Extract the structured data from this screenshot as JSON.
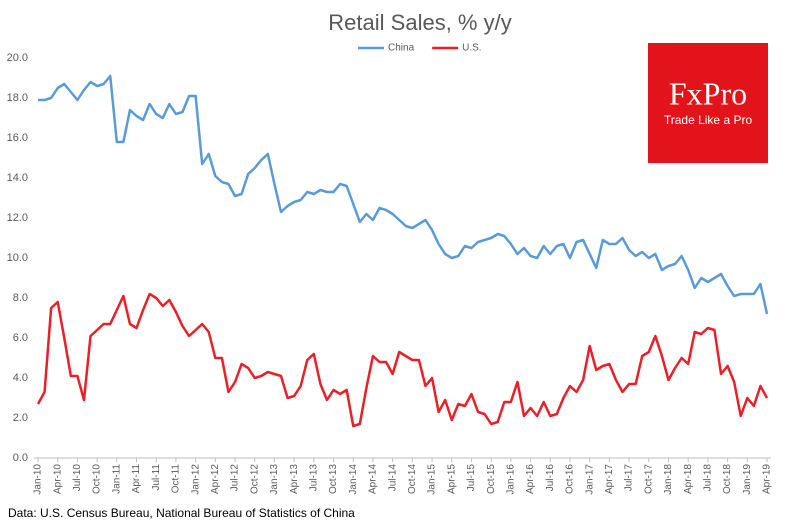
{
  "chart_data": {
    "type": "line",
    "title": "Retail Sales, % y/y",
    "source": "Data: U.S. Census Bureau, National Bureau of Statistics of China",
    "categories": [
      "Jan-10",
      null,
      null,
      "Apr-10",
      null,
      null,
      "Jul-10",
      null,
      null,
      "Oct-10",
      null,
      null,
      "Jan-11",
      null,
      null,
      "Apr-11",
      null,
      null,
      "Jul-11",
      null,
      null,
      "Oct-11",
      null,
      null,
      "Jan-12",
      null,
      null,
      "Apr-12",
      null,
      null,
      "Jul-12",
      null,
      null,
      "Oct-12",
      null,
      null,
      "Jan-13",
      null,
      null,
      "Apr-13",
      null,
      null,
      "Jul-13",
      null,
      null,
      "Oct-13",
      null,
      null,
      "Jan-14",
      null,
      null,
      "Apr-14",
      null,
      null,
      "Jul-14",
      null,
      null,
      "Oct-14",
      null,
      null,
      "Jan-15",
      null,
      null,
      "Apr-15",
      null,
      null,
      "Jul-15",
      null,
      null,
      "Oct-15",
      null,
      null,
      "Jan-16",
      null,
      null,
      "Apr-16",
      null,
      null,
      "Jul-16",
      null,
      null,
      "Oct-16",
      null,
      null,
      "Jan-17",
      null,
      null,
      "Apr-17",
      null,
      null,
      "Jul-17",
      null,
      null,
      "Oct-17",
      null,
      null,
      "Jan-18",
      null,
      null,
      "Apr-18",
      null,
      null,
      "Jul-18",
      null,
      null,
      "Oct-18",
      null,
      null,
      "Jan-19",
      null,
      null,
      "Apr-19"
    ],
    "series": [
      {
        "name": "China",
        "color": "#5b9bd5",
        "values": [
          17.9,
          17.9,
          18.0,
          18.5,
          18.7,
          18.3,
          17.9,
          18.4,
          18.8,
          18.6,
          18.7,
          19.1,
          15.8,
          15.8,
          17.4,
          17.1,
          16.9,
          17.7,
          17.2,
          17.0,
          17.7,
          17.2,
          17.3,
          18.1,
          18.1,
          14.7,
          15.2,
          14.1,
          13.8,
          13.7,
          13.1,
          13.2,
          14.2,
          14.5,
          14.9,
          15.2,
          13.7,
          12.3,
          12.6,
          12.8,
          12.9,
          13.3,
          13.2,
          13.4,
          13.3,
          13.3,
          13.7,
          13.6,
          12.7,
          11.8,
          12.2,
          11.9,
          12.5,
          12.4,
          12.2,
          11.9,
          11.6,
          11.5,
          11.7,
          11.9,
          11.4,
          10.7,
          10.2,
          10.0,
          10.1,
          10.6,
          10.5,
          10.8,
          10.9,
          11.0,
          11.2,
          11.1,
          10.7,
          10.2,
          10.5,
          10.1,
          10.0,
          10.6,
          10.2,
          10.6,
          10.7,
          10.0,
          10.8,
          10.9,
          10.2,
          9.5,
          10.9,
          10.7,
          10.7,
          11.0,
          10.4,
          10.1,
          10.3,
          10.0,
          10.2,
          9.4,
          9.6,
          9.7,
          10.1,
          9.4,
          8.5,
          9.0,
          8.8,
          9.0,
          9.2,
          8.6,
          8.1,
          8.2,
          8.2,
          8.2,
          8.7,
          7.2
        ]
      },
      {
        "name": "U.S.",
        "color": "#e8202a",
        "values": [
          2.7,
          3.3,
          7.5,
          7.8,
          6.0,
          4.1,
          4.1,
          2.9,
          6.1,
          6.4,
          6.7,
          6.7,
          7.4,
          8.1,
          6.7,
          6.5,
          7.4,
          8.2,
          8.0,
          7.6,
          7.9,
          7.3,
          6.6,
          6.1,
          6.4,
          6.7,
          6.3,
          5.0,
          5.0,
          3.3,
          3.8,
          4.7,
          4.5,
          4.0,
          4.1,
          4.3,
          4.2,
          4.1,
          3.0,
          3.1,
          3.6,
          4.9,
          5.2,
          3.7,
          2.9,
          3.4,
          3.2,
          3.4,
          1.6,
          1.7,
          3.5,
          5.1,
          4.8,
          4.8,
          4.2,
          5.3,
          5.1,
          4.9,
          4.9,
          3.6,
          4.0,
          2.3,
          2.9,
          1.9,
          2.7,
          2.6,
          3.2,
          2.3,
          2.2,
          1.7,
          1.8,
          2.8,
          2.8,
          3.8,
          2.1,
          2.5,
          2.1,
          2.8,
          2.1,
          2.2,
          3.0,
          3.6,
          3.3,
          3.9,
          5.6,
          4.4,
          4.6,
          4.7,
          3.9,
          3.3,
          3.7,
          3.7,
          5.1,
          5.3,
          6.1,
          5.1,
          3.9,
          4.5,
          5.0,
          4.7,
          6.3,
          6.2,
          6.5,
          6.4,
          4.2,
          4.6,
          3.8,
          2.1,
          3.0,
          2.6,
          3.6,
          3.0
        ]
      }
    ],
    "ylim": [
      0,
      20
    ],
    "yticks": [
      {
        "value": 0,
        "label": "0.0"
      },
      {
        "value": 2,
        "label": "2.0"
      },
      {
        "value": 4,
        "label": "4.0"
      },
      {
        "value": 6,
        "label": "6.0"
      },
      {
        "value": 8,
        "label": "8.0"
      },
      {
        "value": 10,
        "label": "10.0"
      },
      {
        "value": 12,
        "label": "12.0"
      },
      {
        "value": 14,
        "label": "14.0"
      },
      {
        "value": 16,
        "label": "16.0"
      },
      {
        "value": 18,
        "label": "18.0"
      },
      {
        "value": 20,
        "label": "20.0"
      }
    ],
    "grid": false,
    "legend": "top"
  },
  "logo": {
    "brand": "FxPro",
    "tagline": "Trade Like a Pro"
  }
}
